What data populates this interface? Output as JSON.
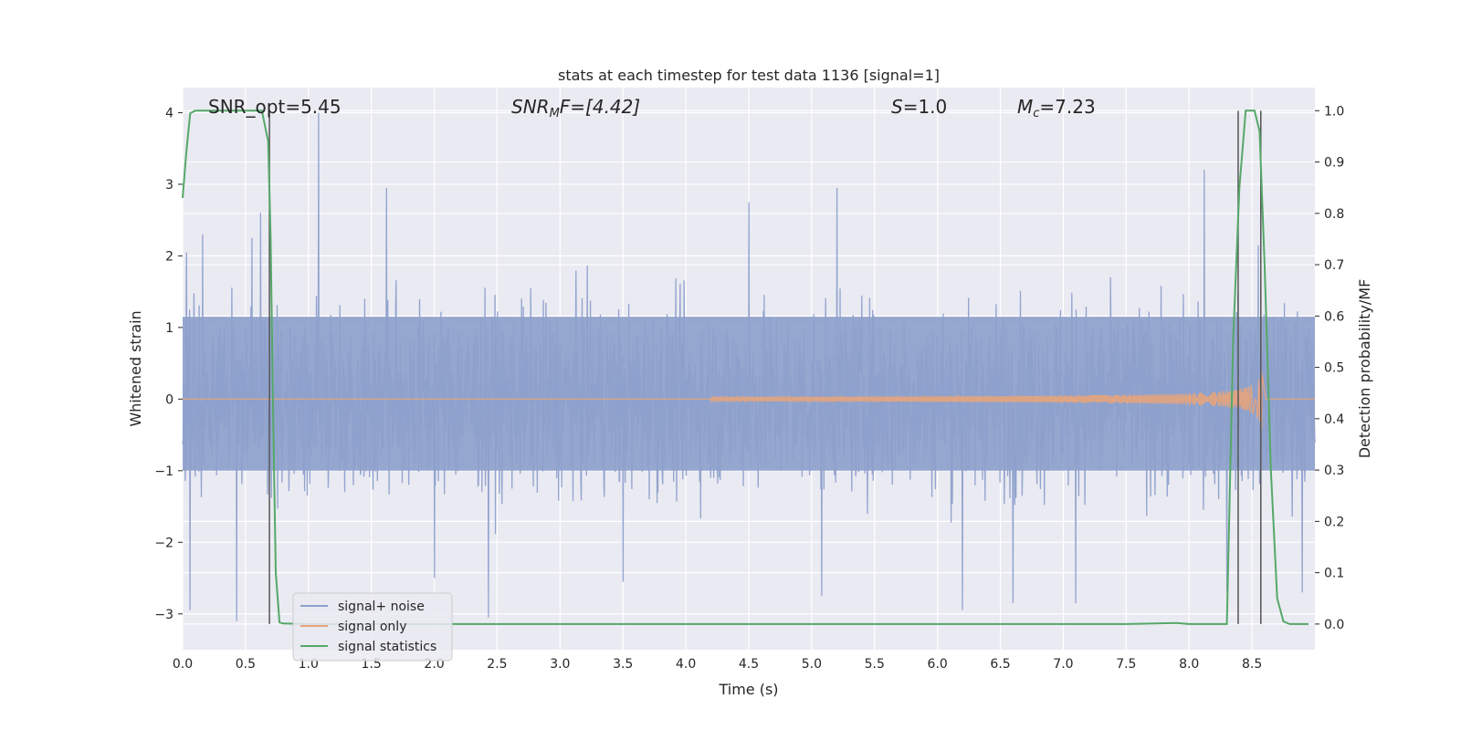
{
  "chart_data": {
    "type": "line",
    "title": "stats at each timestep for test data 1136 [signal=1]",
    "xlabel": "Time (s)",
    "ylabel": "Whitened strain",
    "y2label": "Detection probability/MF",
    "xlim": [
      0.0,
      9.0
    ],
    "ylim": [
      -3.5,
      4.35
    ],
    "y2lim": [
      -0.05,
      1.045
    ],
    "x_ticks": [
      "0.0",
      "0.5",
      "1.0",
      "1.5",
      "2.0",
      "2.5",
      "3.0",
      "3.5",
      "4.0",
      "4.5",
      "5.0",
      "5.5",
      "6.0",
      "6.5",
      "7.0",
      "7.5",
      "8.0",
      "8.5"
    ],
    "y_ticks": [
      "−3",
      "−2",
      "−1",
      "0",
      "1",
      "2",
      "3",
      "4"
    ],
    "y2_ticks": [
      "0.0",
      "0.1",
      "0.2",
      "0.3",
      "0.4",
      "0.5",
      "0.6",
      "0.7",
      "0.8",
      "0.9",
      "1.0"
    ],
    "annotations": [
      {
        "label": "SNR_opt=5.45"
      },
      {
        "label": "SNR",
        "sub": "M",
        "suffix": "F=[4.42]"
      },
      {
        "label": "S",
        "suffix": "=1.0"
      },
      {
        "label": "M",
        "sub": "c",
        "suffix": "=7.23"
      }
    ],
    "legend": {
      "placement": "lower-left",
      "entries": [
        "signal+ noise",
        "signal only",
        "signal statistics"
      ]
    },
    "series": [
      {
        "name": "signal+ noise",
        "axis": "left",
        "color": "#8da0cb",
        "kind": "noise",
        "typical_range": [
          -1.0,
          1.15
        ],
        "spikes": [
          [
            0.03,
            2.05
          ],
          [
            0.06,
            -2.95
          ],
          [
            0.16,
            2.3
          ],
          [
            0.43,
            -3.1
          ],
          [
            0.55,
            2.25
          ],
          [
            0.62,
            2.6
          ],
          [
            1.08,
            4.0
          ],
          [
            1.62,
            2.95
          ],
          [
            2.0,
            -2.5
          ],
          [
            2.43,
            -3.05
          ],
          [
            3.5,
            -2.55
          ],
          [
            4.5,
            2.75
          ],
          [
            5.08,
            -2.75
          ],
          [
            5.2,
            2.95
          ],
          [
            6.2,
            -2.95
          ],
          [
            6.6,
            -2.85
          ],
          [
            7.1,
            -2.85
          ],
          [
            8.12,
            3.2
          ],
          [
            8.3,
            -2.7
          ],
          [
            8.55,
            2.15
          ],
          [
            8.9,
            -2.7
          ]
        ]
      },
      {
        "name": "signal only",
        "axis": "left",
        "color": "#e5a47c",
        "kind": "chirp",
        "start": 4.2,
        "peak_time": 8.58,
        "peak_amplitude": 0.45
      },
      {
        "name": "signal statistics",
        "axis": "right",
        "color": "#55a868",
        "x": [
          0.0,
          0.03,
          0.06,
          0.1,
          0.15,
          0.2,
          0.3,
          0.4,
          0.5,
          0.6,
          0.63,
          0.68,
          0.7,
          0.72,
          0.74,
          0.77,
          0.8,
          1.0,
          2.0,
          3.0,
          4.0,
          5.0,
          6.0,
          7.0,
          7.5,
          7.9,
          8.0,
          8.3,
          8.35,
          8.4,
          8.45,
          8.48,
          8.52,
          8.56,
          8.6,
          8.65,
          8.7,
          8.75,
          8.8,
          8.95
        ],
        "y": [
          0.83,
          0.92,
          0.995,
          1.0,
          1.0,
          1.0,
          1.0,
          1.0,
          1.0,
          1.0,
          1.0,
          0.94,
          0.75,
          0.4,
          0.1,
          0.003,
          0.001,
          0.0,
          0.0,
          0.0,
          0.0,
          0.0,
          0.0,
          0.0,
          0.0,
          0.002,
          0.0,
          0.0,
          0.55,
          0.85,
          1.0,
          1.0,
          1.0,
          0.96,
          0.7,
          0.3,
          0.05,
          0.005,
          0.0,
          0.0
        ]
      }
    ],
    "vlines": [
      0.69,
      8.39,
      8.57
    ],
    "grid": true
  }
}
